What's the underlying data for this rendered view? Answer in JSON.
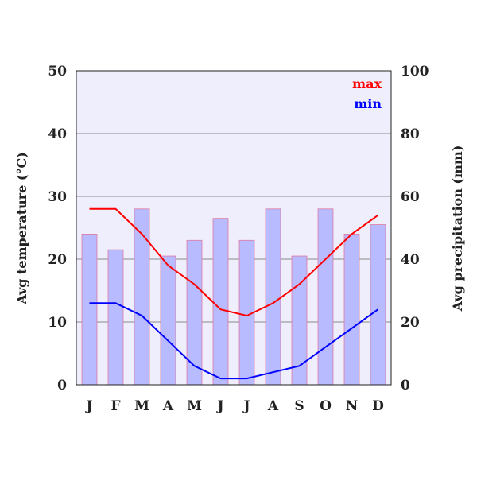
{
  "chart_data": {
    "type": "bar+line",
    "categories": [
      "J",
      "F",
      "M",
      "A",
      "M",
      "J",
      "J",
      "A",
      "S",
      "O",
      "N",
      "D"
    ],
    "ylabel_left": "Avg temperature (°C)",
    "ylabel_right": "Avg precipitation (mm)",
    "ylim_left": [
      0,
      50
    ],
    "ylim_right": [
      0,
      100
    ],
    "yticks_left": [
      "0",
      "10",
      "20",
      "30",
      "40",
      "50"
    ],
    "yticks_right": [
      "0",
      "20",
      "40",
      "60",
      "80",
      "100"
    ],
    "grid": true,
    "legend_position": "top-right",
    "bars": {
      "axis": "right",
      "values": [
        48,
        43,
        56,
        41,
        46,
        53,
        46,
        56,
        41,
        56,
        48,
        51
      ],
      "color": "#b8bbff",
      "edge_color": "#e07aa0"
    },
    "series": [
      {
        "name": "max",
        "axis": "left",
        "values": [
          28,
          28,
          24,
          19,
          16,
          12,
          11,
          13,
          16,
          20,
          24,
          27
        ],
        "color": "#ff0000"
      },
      {
        "name": "min",
        "axis": "left",
        "values": [
          13,
          13,
          11,
          7,
          3,
          1,
          1,
          2,
          3,
          6,
          9,
          12
        ],
        "color": "#0000ff"
      }
    ],
    "plot_background": "#eeeefc"
  }
}
